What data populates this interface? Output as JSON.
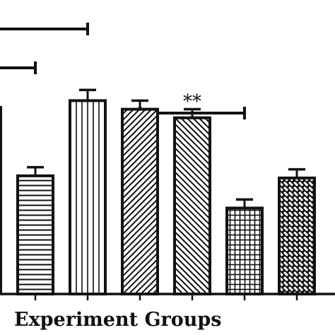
{
  "chart_data": {
    "type": "bar",
    "xlabel": "Experiment Groups",
    "ylabel": "",
    "title": "",
    "ylim": [
      0,
      100
    ],
    "values": [
      55,
      90,
      86,
      82,
      40,
      54
    ],
    "errors": [
      4,
      5,
      4,
      4,
      4,
      4
    ],
    "patterns": [
      "horizontal-lines",
      "vertical-lines",
      "diagonal-lines",
      "diagonal-lines-back",
      "grid",
      "brick"
    ],
    "significance": [
      {
        "from": -3,
        "to": 1,
        "level": 0,
        "label": "*"
      },
      {
        "from": -3,
        "to": 0,
        "level": 1,
        "label": ""
      },
      {
        "from": 2,
        "to": 4,
        "level": 2,
        "label": "**"
      }
    ]
  }
}
